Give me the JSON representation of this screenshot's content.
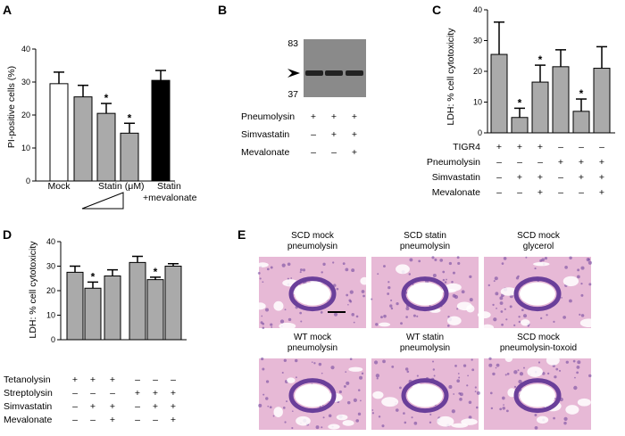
{
  "panels": {
    "A": {
      "letter": "A",
      "chart_data": {
        "type": "bar",
        "ylabel": "PI-positive cells (%)",
        "ylim": [
          0,
          40
        ],
        "yticks": [
          0,
          10,
          20,
          30,
          40
        ],
        "values": [
          29.5,
          25.5,
          20.5,
          14.5,
          30.5
        ],
        "errors": [
          3.5,
          3.5,
          3.0,
          3.0,
          3.0
        ],
        "colors": [
          "#ffffff",
          "#aaaaaa",
          "#aaaaaa",
          "#aaaaaa",
          "#000000"
        ],
        "significant": [
          false,
          false,
          true,
          true,
          false
        ],
        "xlabels": {
          "mock": "Mock",
          "statin": "Statin (μM)",
          "statin_mev_1": "Statin",
          "statin_mev_2": "+mevalonate"
        }
      }
    },
    "B": {
      "letter": "B",
      "markers": [
        "83",
        "37"
      ],
      "rows": [
        {
          "label": "Pneumolysin",
          "values": [
            "+",
            "+",
            "+"
          ]
        },
        {
          "label": "Simvastatin",
          "values": [
            "-",
            "+",
            "+"
          ]
        },
        {
          "label": "Mevalonate",
          "values": [
            "-",
            "-",
            "+"
          ]
        }
      ]
    },
    "C": {
      "letter": "C",
      "chart_data": {
        "type": "bar",
        "ylabel": "LDH: % cell cytotoxicity",
        "ylim": [
          0,
          40
        ],
        "yticks": [
          0,
          10,
          20,
          30,
          40
        ],
        "values": [
          25.5,
          5.0,
          16.5,
          21.5,
          7.0,
          21.0
        ],
        "errors": [
          10.5,
          3.0,
          5.5,
          5.5,
          4.0,
          7.0
        ],
        "significant": [
          false,
          true,
          true,
          false,
          true,
          false
        ]
      },
      "rows": [
        {
          "label": "TIGR4",
          "values": [
            "+",
            "+",
            "+",
            "-",
            "-",
            "-"
          ]
        },
        {
          "label": "Pneumolysin",
          "values": [
            "-",
            "-",
            "-",
            "+",
            "+",
            "+"
          ]
        },
        {
          "label": "Simvastatin",
          "values": [
            "-",
            "+",
            "+",
            "-",
            "+",
            "+"
          ]
        },
        {
          "label": "Mevalonate",
          "values": [
            "-",
            "-",
            "+",
            "-",
            "-",
            "+"
          ]
        }
      ]
    },
    "D": {
      "letter": "D",
      "chart_data": {
        "type": "bar",
        "ylabel": "LDH: % cell cytotoxicity",
        "ylim": [
          0,
          40
        ],
        "yticks": [
          0,
          10,
          20,
          30,
          40
        ],
        "values": [
          27.5,
          21.0,
          26.0,
          31.5,
          24.5,
          30.0
        ],
        "errors": [
          2.5,
          2.5,
          2.5,
          2.5,
          1.0,
          1.0
        ],
        "significant": [
          false,
          true,
          false,
          false,
          true,
          false
        ]
      },
      "rows": [
        {
          "label": "Tetanolysin",
          "values": [
            "+",
            "+",
            "+",
            "-",
            "-",
            "-"
          ]
        },
        {
          "label": "Streptolysin",
          "values": [
            "-",
            "-",
            "-",
            "+",
            "+",
            "+"
          ]
        },
        {
          "label": "Simvastatin",
          "values": [
            "-",
            "+",
            "+",
            "-",
            "+",
            "+"
          ]
        },
        {
          "label": "Mevalonate",
          "values": [
            "-",
            "-",
            "+",
            "-",
            "-",
            "+"
          ]
        }
      ]
    },
    "E": {
      "letter": "E",
      "images": [
        {
          "line1": "SCD mock",
          "line2": "pneumolysin"
        },
        {
          "line1": "SCD statin",
          "line2": "pneumolysin"
        },
        {
          "line1": "SCD mock",
          "line2": "glycerol"
        },
        {
          "line1": "WT mock",
          "line2": "pneumolysin"
        },
        {
          "line1": "WT statin",
          "line2": "pneumolysin"
        },
        {
          "line1": "SCD mock",
          "line2": "pneumolysin-toxoid"
        }
      ]
    }
  },
  "colors": {
    "bar_gray": "#aaaaaa",
    "tissue_pink": "#e7b9d6",
    "tissue_purple": "#6a3f9a",
    "blot_gray": "#8a8a8a"
  }
}
